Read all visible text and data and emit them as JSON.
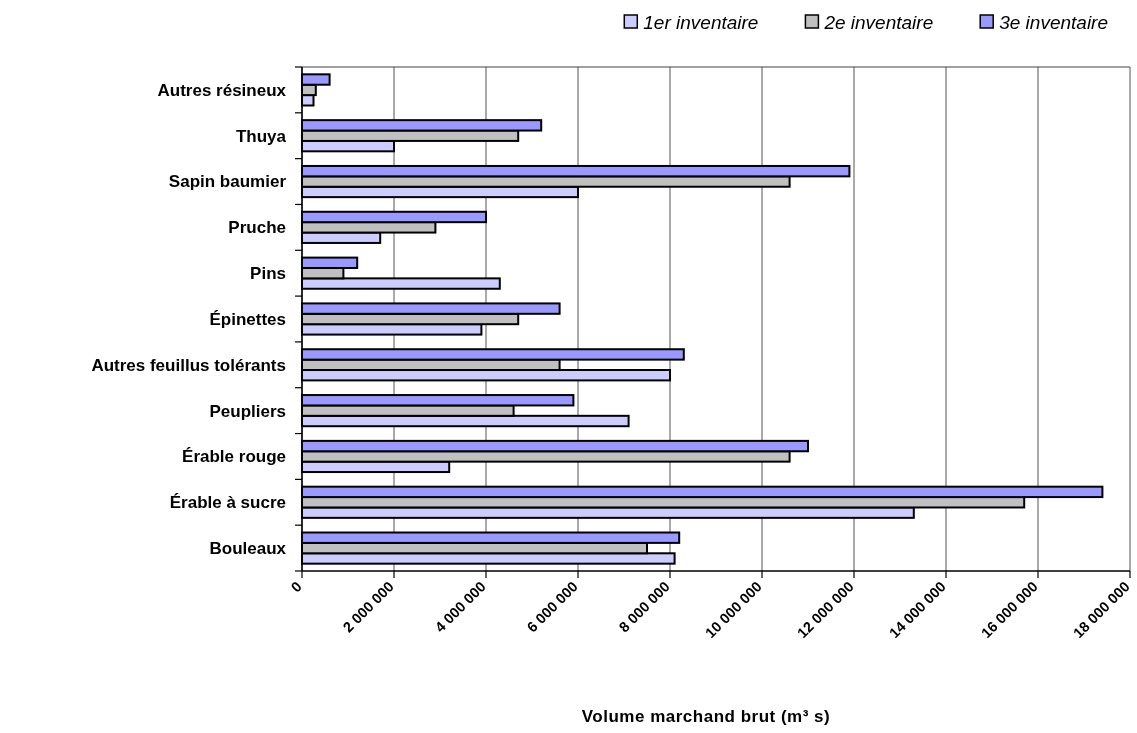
{
  "chart_data": {
    "type": "bar",
    "orientation": "horizontal",
    "categories": [
      "Autres résineux",
      "Thuya",
      "Sapin baumier",
      "Pruche",
      "Pins",
      "Épinettes",
      "Autres feuillus tolérants",
      "Peupliers",
      "Érable rouge",
      "Érable à sucre",
      "Bouleaux"
    ],
    "series": [
      {
        "name": "1er inventaire",
        "color": "#ccccff",
        "values": [
          250000,
          2000000,
          6000000,
          1700000,
          4300000,
          3900000,
          8000000,
          7100000,
          3200000,
          13300000,
          8100000
        ]
      },
      {
        "name": "2e inventaire",
        "color": "#c0c0c0",
        "values": [
          300000,
          4700000,
          10600000,
          2900000,
          900000,
          4700000,
          5600000,
          4600000,
          10600000,
          15700000,
          7500000
        ]
      },
      {
        "name": "3e inventaire",
        "color": "#9999ff",
        "values": [
          600000,
          5200000,
          11900000,
          4000000,
          1200000,
          5600000,
          8300000,
          5900000,
          11000000,
          17400000,
          8200000
        ]
      }
    ],
    "xlim": [
      0,
      18000000
    ],
    "xticks": [
      0,
      {
        "value": 2000000,
        "label": "2 000 000"
      },
      {
        "value": 4000000,
        "label": "4 000 000"
      },
      {
        "value": 6000000,
        "label": "6 000 000"
      },
      {
        "value": 8000000,
        "label": "8 000 000"
      },
      {
        "value": 10000000,
        "label": "10 000 000"
      },
      {
        "value": 12000000,
        "label": "12 000 000"
      },
      {
        "value": 14000000,
        "label": "14 000 000"
      },
      {
        "value": 16000000,
        "label": "16 000 000"
      },
      {
        "value": 18000000,
        "label": "18 000 000"
      }
    ],
    "xlabel": "Volume marchand brut (m³ s)",
    "grid": "x",
    "legend": "top right"
  }
}
